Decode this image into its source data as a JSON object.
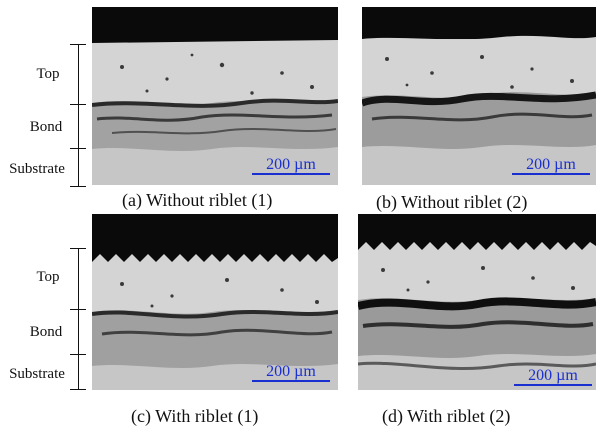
{
  "panels": [
    {
      "id": "a",
      "caption": "(a) Without riblet (1)",
      "scalebar": "200 µm"
    },
    {
      "id": "b",
      "caption": "(b) Without riblet (2)",
      "scalebar": "200 µm"
    },
    {
      "id": "c",
      "caption": "(c) With riblet (1)",
      "scalebar": "200 µm"
    },
    {
      "id": "d",
      "caption": "(d) With riblet (2)",
      "scalebar": "200 µm"
    }
  ],
  "layers": {
    "top": "Top",
    "bond": "Bond",
    "substrate": "Substrate"
  },
  "colors": {
    "scalebar": "#1a2fd0",
    "background_black": "#0a0a0a",
    "top_coat": "#d2d2d2",
    "bond_coat": "#9a9a9a",
    "substrate": "#c6c6c6"
  }
}
